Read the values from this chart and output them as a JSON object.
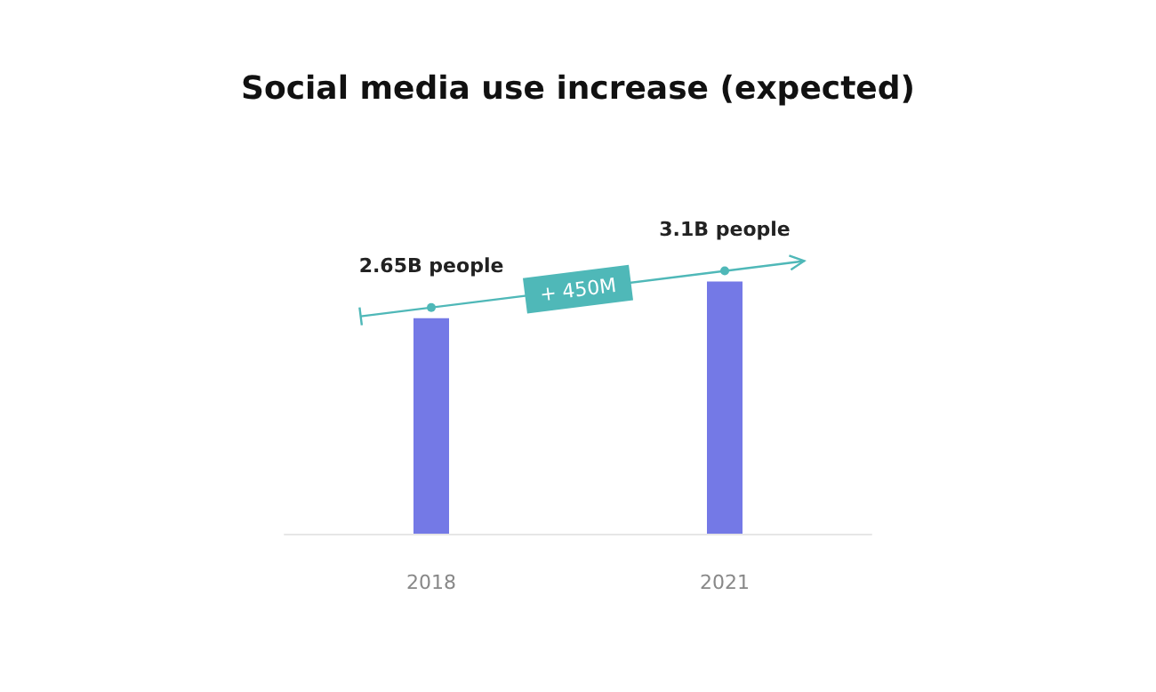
{
  "chart_data": {
    "type": "bar",
    "title": "Social media use increase (expected)",
    "categories": [
      "2018",
      "2021"
    ],
    "values": [
      2.65,
      3.1
    ],
    "value_labels": [
      "2.65B people",
      "3.1B people"
    ],
    "color": "#7479e6",
    "annotations": [
      "+ 450M"
    ]
  }
}
